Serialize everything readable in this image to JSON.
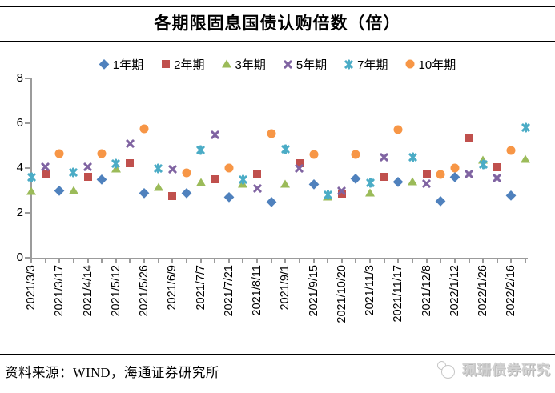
{
  "title": "各期限固息国债认购倍数（倍）",
  "footer": {
    "source": "资料来源：WIND，海通证券研究所"
  },
  "watermark": {
    "text": "珮珊债券研究",
    "logo": "two-circles-logo"
  },
  "chart_data": {
    "type": "scatter",
    "title": "各期限固息国债认购倍数（倍）",
    "ylabel": "",
    "xlabel": "",
    "ylim": [
      0,
      8
    ],
    "yticks": [
      0,
      2,
      4,
      6,
      8
    ],
    "grid": false,
    "legend_position": "top",
    "n_categories": 36,
    "x_label_start": 1,
    "x_label_every": 2,
    "x_labels": [
      "2021/3/3",
      "2021/3/17",
      "2021/4/14",
      "2021/5/12",
      "2021/5/26",
      "2021/6/9",
      "2021/7/7",
      "2021/7/21",
      "2021/8/11",
      "2021/9/1",
      "2021/9/15",
      "2021/10/20",
      "2021/11/3",
      "2021/11/17",
      "2021/12/8",
      "2022/1/12",
      "2022/1/26",
      "2022/2/16"
    ],
    "colors": {
      "axis": "#9B9B9B",
      "text": "#000000",
      "watermark": "#D2D2D2"
    },
    "series": [
      {
        "name": "1年期",
        "marker": "diamond",
        "color": "#4F81BD",
        "points": [
          [
            3,
            3.0
          ],
          [
            6,
            3.5
          ],
          [
            9,
            2.9
          ],
          [
            12,
            2.9
          ],
          [
            15,
            2.7
          ],
          [
            18,
            2.5
          ],
          [
            21,
            3.3
          ],
          [
            24,
            3.55
          ],
          [
            27,
            3.4
          ],
          [
            30,
            2.55
          ],
          [
            31,
            3.6
          ],
          [
            35,
            2.8
          ]
        ]
      },
      {
        "name": "2年期",
        "marker": "square",
        "color": "#C0504D",
        "points": [
          [
            2,
            3.7
          ],
          [
            5,
            3.6
          ],
          [
            8,
            4.2
          ],
          [
            11,
            2.75
          ],
          [
            14,
            3.5
          ],
          [
            17,
            3.75
          ],
          [
            20,
            4.2
          ],
          [
            23,
            2.85
          ],
          [
            26,
            3.6
          ],
          [
            29,
            3.7
          ],
          [
            32,
            5.35
          ],
          [
            34,
            4.05
          ]
        ]
      },
      {
        "name": "3年期",
        "marker": "triangle",
        "color": "#9BBB59",
        "points": [
          [
            1,
            2.95
          ],
          [
            4,
            3.0
          ],
          [
            7,
            3.95
          ],
          [
            10,
            3.15
          ],
          [
            13,
            3.35
          ],
          [
            16,
            3.3
          ],
          [
            19,
            3.3
          ],
          [
            22,
            2.7
          ],
          [
            25,
            2.9
          ],
          [
            28,
            3.4
          ],
          [
            33,
            4.35
          ],
          [
            36,
            4.4
          ]
        ]
      },
      {
        "name": "5年期",
        "marker": "x",
        "color": "#8064A2",
        "points": [
          [
            2,
            4.05
          ],
          [
            5,
            4.05
          ],
          [
            8,
            5.1
          ],
          [
            11,
            3.95
          ],
          [
            14,
            5.5
          ],
          [
            17,
            3.1
          ],
          [
            20,
            4.0
          ],
          [
            23,
            3.0
          ],
          [
            26,
            4.5
          ],
          [
            29,
            3.3
          ],
          [
            32,
            3.75
          ],
          [
            34,
            3.55
          ]
        ]
      },
      {
        "name": "7年期",
        "marker": "xstar",
        "color": "#4BACC6",
        "points": [
          [
            1,
            3.6
          ],
          [
            4,
            3.8
          ],
          [
            7,
            4.2
          ],
          [
            10,
            4.0
          ],
          [
            13,
            4.8
          ],
          [
            16,
            3.5
          ],
          [
            19,
            4.85
          ],
          [
            22,
            2.8
          ],
          [
            25,
            3.35
          ],
          [
            28,
            4.5
          ],
          [
            33,
            4.15
          ],
          [
            36,
            5.8
          ]
        ]
      },
      {
        "name": "10年期",
        "marker": "circle",
        "color": "#F79646",
        "points": [
          [
            3,
            4.65
          ],
          [
            6,
            4.65
          ],
          [
            9,
            5.75
          ],
          [
            12,
            3.8
          ],
          [
            15,
            4.0
          ],
          [
            18,
            5.55
          ],
          [
            21,
            4.6
          ],
          [
            24,
            4.6
          ],
          [
            27,
            5.7
          ],
          [
            30,
            3.7
          ],
          [
            31,
            4.0
          ],
          [
            35,
            4.8
          ]
        ]
      }
    ]
  }
}
